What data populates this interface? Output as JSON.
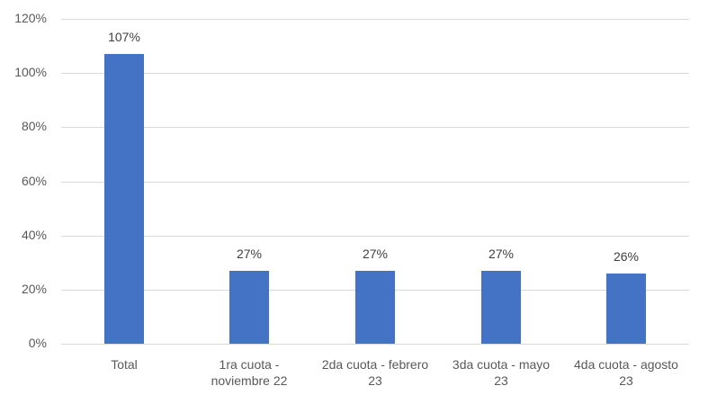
{
  "chart_data": {
    "type": "bar",
    "title": "",
    "xlabel": "",
    "ylabel": "",
    "categories": [
      "Total",
      "1ra cuota - noviembre 22",
      "2da cuota - febrero 23",
      "3da cuota - mayo 23",
      "4da cuota - agosto 23"
    ],
    "category_lines": [
      [
        "Total"
      ],
      [
        "1ra cuota -",
        "noviembre 22"
      ],
      [
        "2da cuota - febrero",
        "23"
      ],
      [
        "3da cuota - mayo",
        "23"
      ],
      [
        "4da cuota - agosto",
        "23"
      ]
    ],
    "values": [
      107,
      27,
      27,
      27,
      26
    ],
    "data_labels": [
      "107%",
      "27%",
      "27%",
      "27%",
      "26%"
    ],
    "ylim": [
      0,
      120
    ],
    "yticks": [
      0,
      20,
      40,
      60,
      80,
      100,
      120
    ],
    "ytick_labels": [
      "0%",
      "20%",
      "40%",
      "60%",
      "80%",
      "100%",
      "120%"
    ],
    "grid": true,
    "legend": null,
    "colors": {
      "bar": "#4472C4",
      "grid": "#D9D9D9",
      "text": "#595959"
    }
  }
}
